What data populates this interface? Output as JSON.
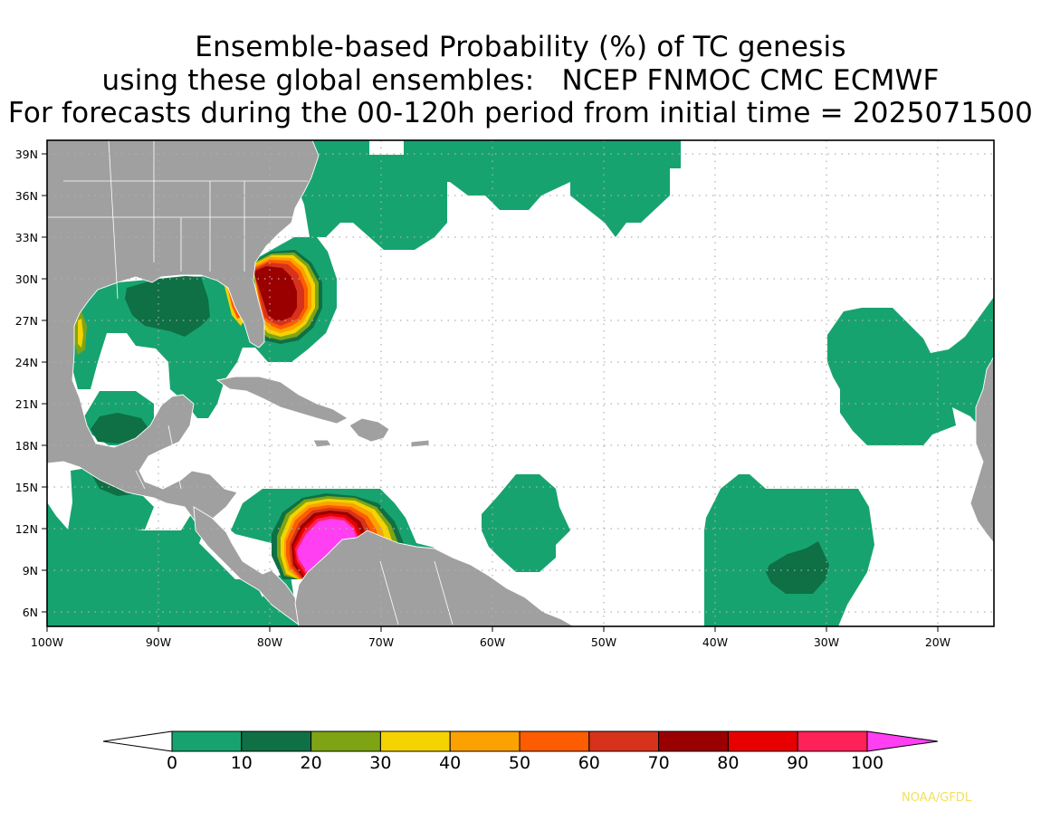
{
  "title": {
    "line1": "Ensemble-based Probability (%) of TC genesis",
    "line2": "using these global ensembles:   NCEP FNMOC CMC ECMWF",
    "line3": "For forecasts during the 00-120h period from initial time = 2025071500"
  },
  "map": {
    "lon_range": [
      -100,
      -15
    ],
    "lat_range": [
      5,
      40
    ],
    "lat_labels": [
      "39N",
      "36N",
      "33N",
      "30N",
      "27N",
      "24N",
      "21N",
      "18N",
      "15N",
      "12N",
      "9N",
      "6N"
    ],
    "lon_labels": [
      "100W",
      "90W",
      "80W",
      "70W",
      "60W",
      "50W",
      "40W",
      "30W",
      "20W"
    ],
    "grid": "dotted",
    "land_color": "#a0a0a0",
    "border_color": "#ffffff"
  },
  "colorbar": {
    "labels": [
      "0",
      "10",
      "20",
      "30",
      "40",
      "50",
      "60",
      "70",
      "80",
      "90",
      "100"
    ],
    "colors": [
      "#17a36f",
      "#0e7044",
      "#7ea413",
      "#f4d300",
      "#fba100",
      "#fd5c00",
      "#d7321b",
      "#9b0000",
      "#e80000",
      "#fe2258"
    ],
    "under_color": "#ffffff",
    "over_color": "#ff3ff1"
  },
  "credit": "NOAA/GFDL"
}
